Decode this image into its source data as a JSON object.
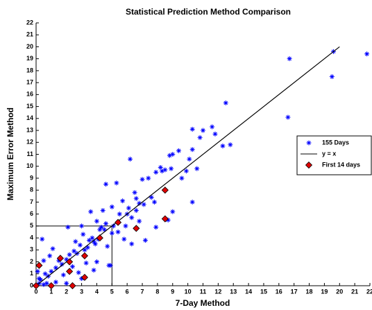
{
  "chart_data": {
    "type": "scatter",
    "title": "Statistical Prediction Method Comparison",
    "x_label": "7-Day Method",
    "y_label": "Maximum Error Method",
    "xlim": [
      0,
      22
    ],
    "ylim": [
      0,
      22
    ],
    "xticks": [
      0,
      1,
      2,
      3,
      4,
      5,
      6,
      7,
      8,
      9,
      10,
      11,
      12,
      13,
      14,
      15,
      16,
      17,
      18,
      19,
      20,
      21,
      22
    ],
    "yticks": [
      0,
      1,
      2,
      3,
      4,
      5,
      6,
      7,
      8,
      9,
      10,
      11,
      12,
      13,
      14,
      15,
      16,
      17,
      18,
      19,
      20,
      21,
      22
    ],
    "legend": "right",
    "series": [
      {
        "name": "155 Days",
        "color": "#0000ff",
        "marker": "asterisk",
        "x": [
          16.7,
          19.6,
          19.5,
          16.6,
          21.8,
          12.5,
          12.8,
          12.3,
          11.8,
          11.6,
          11.0,
          10.3,
          10.8,
          10.3,
          9.4,
          9.0,
          8.8,
          10.1,
          10.6,
          10.3,
          9.6,
          9.9,
          8.5,
          8.3,
          8.2,
          7.9,
          7.4,
          7.0,
          6.2,
          4.6,
          5.3,
          6.5,
          6.6,
          6.8,
          7.1,
          6.6,
          6.1,
          6.0,
          5.5,
          5.0,
          4.4,
          3.6,
          4.0,
          4.6,
          5.1,
          5.0,
          4.5,
          4.3,
          3.7,
          3.5,
          3.8,
          3.9,
          4.1,
          3.4,
          3.2,
          2.9,
          2.7,
          2.5,
          2.2,
          2.0,
          1.7,
          1.5,
          1.3,
          1.0,
          0.8,
          0.6,
          0.3,
          0.2,
          0.1,
          0.4,
          0.5,
          2.1,
          4.8,
          4.9,
          3.0,
          2.0,
          1.3,
          7.2,
          8.7,
          6.8,
          7.9,
          5.8,
          6.3,
          4.0,
          3.8,
          3.3,
          5.4,
          5.9,
          2.4,
          1.8,
          0.7,
          0.9,
          1.1,
          2.6,
          3.1,
          4.2,
          9.0,
          8.9,
          6.3,
          7.6,
          7.8,
          5.7,
          3.0,
          4.7,
          0.2,
          0.5,
          2.8
        ],
        "values": [
          19.0,
          19.6,
          17.5,
          14.1,
          19.4,
          15.3,
          11.8,
          11.7,
          12.7,
          13.3,
          13.0,
          13.1,
          12.4,
          11.4,
          11.3,
          11.0,
          10.9,
          10.6,
          9.8,
          7.0,
          9.0,
          9.6,
          9.7,
          9.6,
          9.9,
          9.5,
          9.0,
          8.9,
          10.6,
          8.5,
          8.6,
          7.8,
          7.3,
          6.9,
          6.8,
          6.3,
          6.5,
          6.0,
          6.0,
          6.6,
          6.3,
          6.2,
          5.4,
          5.2,
          5.0,
          4.4,
          4.7,
          4.9,
          4.0,
          3.8,
          3.7,
          3.5,
          3.9,
          3.2,
          3.0,
          3.4,
          2.7,
          2.9,
          2.6,
          2.2,
          1.8,
          2.1,
          1.5,
          1.2,
          0.8,
          1.0,
          0.5,
          0.2,
          1.2,
          3.9,
          2.1,
          4.9,
          1.7,
          1.7,
          0.6,
          0.2,
          0.3,
          3.8,
          5.5,
          5.4,
          4.9,
          3.9,
          3.5,
          2.0,
          1.3,
          1.9,
          4.5,
          5.0,
          1.6,
          0.9,
          0.2,
          2.5,
          3.1,
          3.7,
          4.3,
          4.7,
          6.2,
          9.8,
          5.7,
          7.4,
          7.0,
          7.1,
          5.0,
          3.3,
          0.6,
          0.1,
          1.1
        ]
      },
      {
        "name": "y = x",
        "color": "#000000",
        "marker": "line",
        "x": [
          0,
          20
        ],
        "values": [
          0,
          20
        ]
      },
      {
        "name": "First 14 days",
        "color": "#e00000",
        "marker": "diamond",
        "x": [
          0,
          0.2,
          1,
          1.6,
          2.2,
          2.2,
          2.4,
          3.2,
          3.2,
          4.2,
          5.4,
          6.6,
          8.5,
          8.5
        ],
        "values": [
          0,
          1.7,
          0,
          2.3,
          1.2,
          2.0,
          0,
          2.5,
          0.7,
          4.0,
          5.3,
          4.8,
          8.0,
          5.6
        ]
      }
    ],
    "reference_box": {
      "color": "#000000",
      "x": [
        0,
        5,
        5
      ],
      "y": [
        5,
        5,
        0
      ]
    }
  }
}
